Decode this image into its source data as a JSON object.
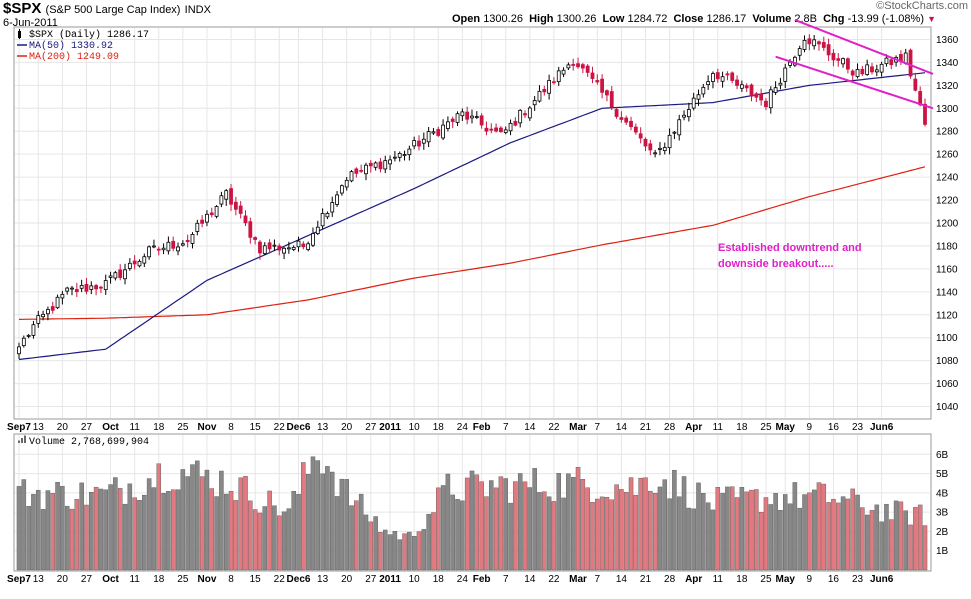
{
  "header": {
    "symbol": "$SPX",
    "description": "(S&P 500 Large Cap Index)",
    "exchange": "INDX",
    "date": "6-Jun-2011",
    "open_label": "Open",
    "open": "1300.26",
    "high_label": "High",
    "high": "1300.26",
    "low_label": "Low",
    "low": "1284.72",
    "close_label": "Close",
    "close": "1286.17",
    "volume_label": "Volume",
    "volume": "2.8B",
    "chg_label": "Chg",
    "chg": "-13.99 (-1.08%)",
    "brand": "©StockCharts.com"
  },
  "colors": {
    "up": "#000000",
    "down": "#cc1444",
    "ma50": "#1a1a80",
    "ma200": "#dd2211",
    "trendline": "#e020c8",
    "vol_up": "#888888",
    "vol_down": "#e07a80",
    "grid": "#e6e6e6"
  },
  "chart_data": [
    {
      "type": "candlestick",
      "name": "$SPX (Daily)",
      "legend": [
        {
          "label": "$SPX (Daily) 1286.17",
          "color": "#000000",
          "icon": "candlestick-icon"
        },
        {
          "label": "MA(50) 1330.92",
          "color": "#1a1a80",
          "icon": "line-icon"
        },
        {
          "label": "MA(200) 1249.09",
          "color": "#dd2211",
          "icon": "line-icon"
        }
      ],
      "ylim": [
        1030,
        1370
      ],
      "y_ticks": [
        1040,
        1060,
        1080,
        1100,
        1120,
        1140,
        1160,
        1180,
        1200,
        1220,
        1240,
        1260,
        1280,
        1300,
        1320,
        1340,
        1360
      ],
      "x_tick_labels": [
        "Sep7",
        "13",
        "20",
        "27",
        "Oct",
        "11",
        "18",
        "25",
        "Nov",
        "8",
        "15",
        "22",
        "Dec6",
        "13",
        "20",
        "27",
        "2011",
        "10",
        "18",
        "24",
        "Feb",
        "7",
        "14",
        "22",
        "Mar",
        "7",
        "14",
        "21",
        "28",
        "Apr",
        "11",
        "18",
        "25",
        "May",
        "9",
        "16",
        "23",
        "Jun6"
      ],
      "bold_tick_labels": [
        "Sep7",
        "Oct",
        "Nov",
        "Dec6",
        "2011",
        "Feb",
        "Mar",
        "Apr",
        "May",
        "Jun6"
      ],
      "anchors": [
        {
          "date": "2010-09-07",
          "close": 1092
        },
        {
          "date": "2010-09-10",
          "close": 1110
        },
        {
          "date": "2010-09-21",
          "close": 1140
        },
        {
          "date": "2010-10-01",
          "close": 1147
        },
        {
          "date": "2010-10-14",
          "close": 1175
        },
        {
          "date": "2010-10-26",
          "close": 1185
        },
        {
          "date": "2010-11-05",
          "close": 1225
        },
        {
          "date": "2010-11-16",
          "close": 1178
        },
        {
          "date": "2010-11-30",
          "close": 1180
        },
        {
          "date": "2010-12-13",
          "close": 1240
        },
        {
          "date": "2010-12-29",
          "close": 1259
        },
        {
          "date": "2011-01-18",
          "close": 1295
        },
        {
          "date": "2011-01-28",
          "close": 1276
        },
        {
          "date": "2011-02-18",
          "close": 1343
        },
        {
          "date": "2011-03-02",
          "close": 1308
        },
        {
          "date": "2011-03-16",
          "close": 1257
        },
        {
          "date": "2011-04-01",
          "close": 1332
        },
        {
          "date": "2011-04-18",
          "close": 1305
        },
        {
          "date": "2011-04-29",
          "close": 1363
        },
        {
          "date": "2011-05-16",
          "close": 1330
        },
        {
          "date": "2011-05-31",
          "close": 1345
        },
        {
          "date": "2011-06-06",
          "close": 1286
        }
      ],
      "ma50_anchors": [
        {
          "date": "2010-09-07",
          "value": 1081
        },
        {
          "date": "2010-10-01",
          "value": 1090
        },
        {
          "date": "2010-11-01",
          "value": 1150
        },
        {
          "date": "2010-12-01",
          "value": 1189
        },
        {
          "date": "2011-01-03",
          "value": 1230
        },
        {
          "date": "2011-02-01",
          "value": 1270
        },
        {
          "date": "2011-03-01",
          "value": 1300
        },
        {
          "date": "2011-04-01",
          "value": 1305
        },
        {
          "date": "2011-05-02",
          "value": 1320
        },
        {
          "date": "2011-06-06",
          "value": 1331
        }
      ],
      "ma200_anchors": [
        {
          "date": "2010-09-07",
          "value": 1116
        },
        {
          "date": "2010-10-01",
          "value": 1117
        },
        {
          "date": "2010-11-01",
          "value": 1120
        },
        {
          "date": "2010-12-01",
          "value": 1133
        },
        {
          "date": "2011-01-03",
          "value": 1152
        },
        {
          "date": "2011-02-01",
          "value": 1165
        },
        {
          "date": "2011-03-01",
          "value": 1181
        },
        {
          "date": "2011-04-01",
          "value": 1198
        },
        {
          "date": "2011-05-02",
          "value": 1223
        },
        {
          "date": "2011-06-06",
          "value": 1249
        }
      ],
      "trendlines": [
        {
          "from": {
            "date": "2011-04-27",
            "value": 1377
          },
          "to": {
            "date": "2011-06-06",
            "value": 1330
          }
        },
        {
          "from": {
            "date": "2011-04-20",
            "value": 1345
          },
          "to": {
            "date": "2011-06-06",
            "value": 1300
          }
        }
      ],
      "annotation": [
        "Established downtrend and",
        "downside breakout....."
      ]
    },
    {
      "type": "bar",
      "name": "Volume",
      "legend": [
        {
          "label": "Volume 2,768,699,904",
          "color": "#888888",
          "icon": "bar-icon"
        }
      ],
      "ylim": [
        0,
        7
      ],
      "y_ticks": [
        1,
        2,
        3,
        4,
        5,
        6
      ],
      "y_tick_labels": [
        "1B",
        "2B",
        "3B",
        "4B",
        "5B",
        "6B"
      ],
      "x_tick_labels": [
        "Sep7",
        "13",
        "20",
        "27",
        "Oct",
        "11",
        "18",
        "25",
        "Nov",
        "8",
        "15",
        "22",
        "Dec6",
        "13",
        "20",
        "27",
        "2011",
        "10",
        "18",
        "24",
        "Feb",
        "7",
        "14",
        "22",
        "Mar",
        "7",
        "14",
        "21",
        "28",
        "Apr",
        "11",
        "18",
        "25",
        "May",
        "9",
        "16",
        "23",
        "Jun6"
      ],
      "anchors": [
        {
          "date": "2010-09-07",
          "value": 4.0
        },
        {
          "date": "2010-10-01",
          "value": 3.9
        },
        {
          "date": "2010-10-20",
          "value": 5.2
        },
        {
          "date": "2010-11-05",
          "value": 4.6
        },
        {
          "date": "2010-11-24",
          "value": 3.0
        },
        {
          "date": "2010-12-03",
          "value": 6.3
        },
        {
          "date": "2010-12-13",
          "value": 4.0
        },
        {
          "date": "2010-12-24",
          "value": 2.0
        },
        {
          "date": "2010-12-31",
          "value": 1.7
        },
        {
          "date": "2011-01-12",
          "value": 4.2
        },
        {
          "date": "2011-02-01",
          "value": 4.4
        },
        {
          "date": "2011-02-22",
          "value": 4.5
        },
        {
          "date": "2011-03-10",
          "value": 4.3
        },
        {
          "date": "2011-03-16",
          "value": 4.9
        },
        {
          "date": "2011-04-01",
          "value": 3.5
        },
        {
          "date": "2011-04-20",
          "value": 3.8
        },
        {
          "date": "2011-05-06",
          "value": 3.8
        },
        {
          "date": "2011-05-25",
          "value": 3.0
        },
        {
          "date": "2011-06-06",
          "value": 2.8
        }
      ]
    }
  ]
}
